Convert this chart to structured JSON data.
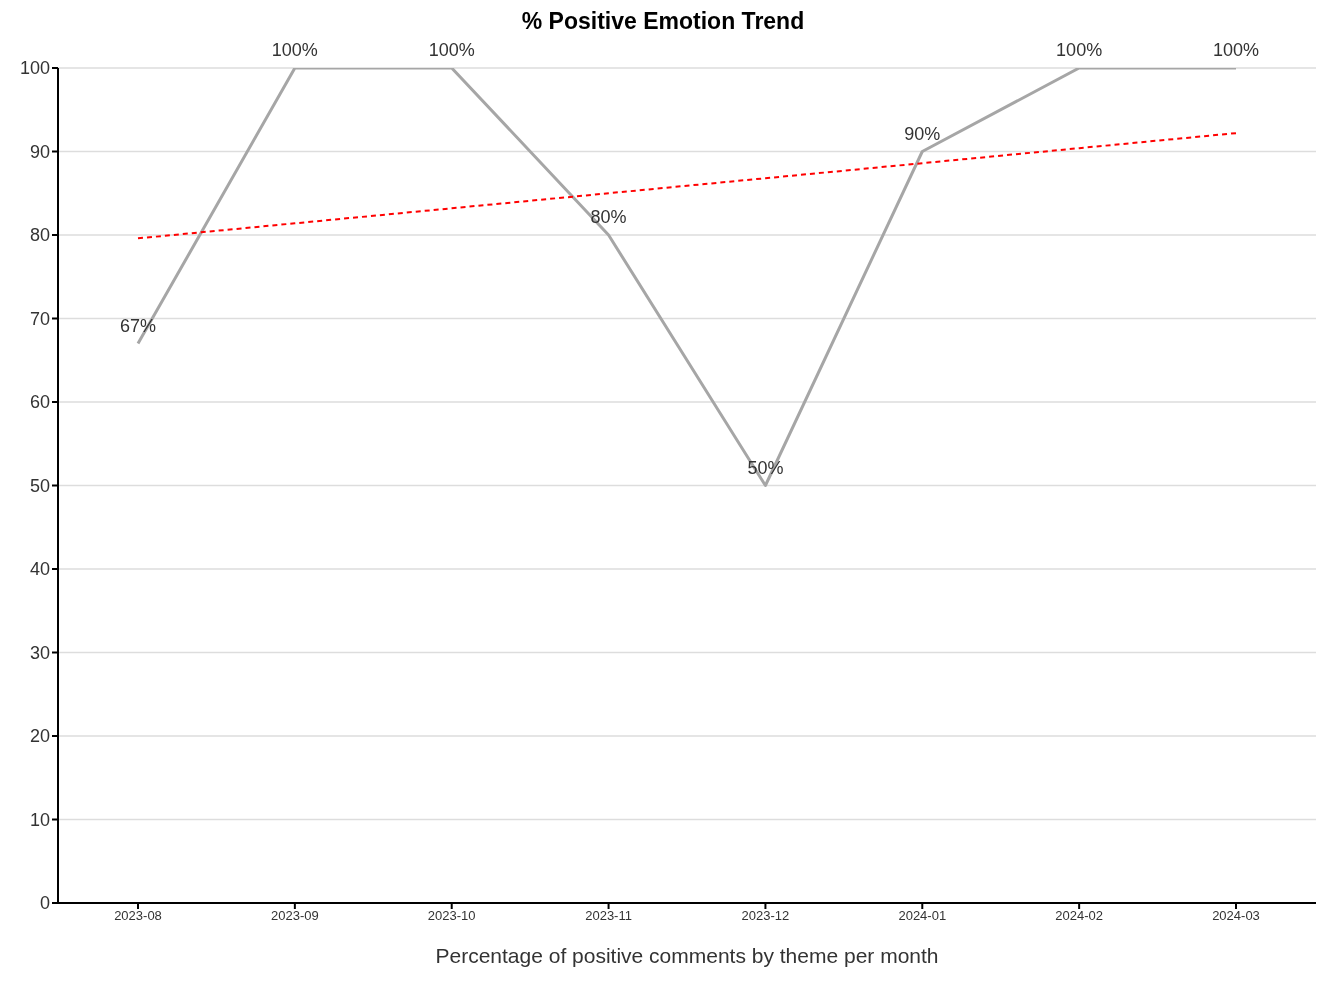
{
  "chart_data": {
    "type": "line",
    "title": "% Positive Emotion Trend",
    "xlabel": "Percentage of positive comments by theme per month",
    "categories": [
      "2023-08",
      "2023-09",
      "2023-10",
      "2023-11",
      "2023-12",
      "2024-01",
      "2024-02",
      "2024-03"
    ],
    "series": [
      {
        "color": "#a6a6a6",
        "values": [
          67,
          100,
          100,
          80,
          50,
          90,
          100,
          100
        ],
        "value_labels": [
          "67%",
          "100%",
          "100%",
          "80%",
          "50%",
          "90%",
          "100%",
          "100%"
        ]
      },
      {
        "type": "line",
        "color": "#ff0000",
        "line_style": "dashed",
        "values": [
          79.6,
          81.4,
          83.2,
          85.0,
          86.8,
          88.6,
          90.4,
          92.2
        ]
      }
    ],
    "ylim": [
      0,
      100
    ],
    "yticks": [
      0,
      10,
      20,
      30,
      40,
      50,
      60,
      70,
      80,
      90,
      100
    ],
    "grid": "y",
    "marker": "none",
    "line_style": "solid"
  }
}
